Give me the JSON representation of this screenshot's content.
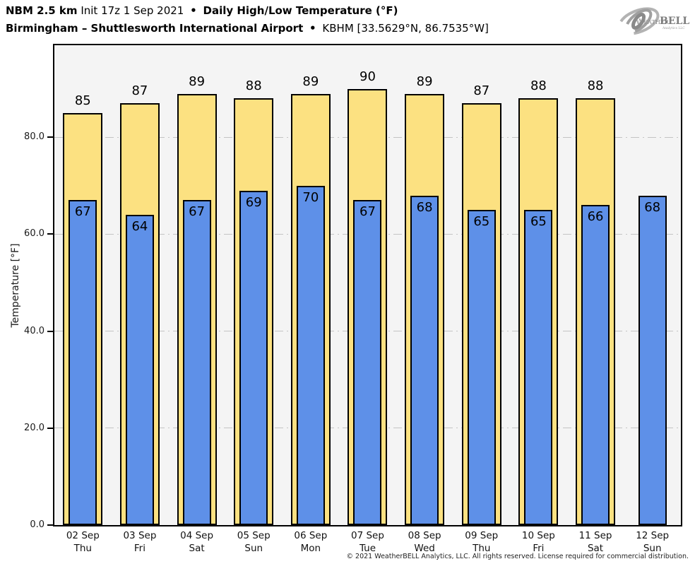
{
  "header": {
    "model": "NBM 2.5 km",
    "init": "Init 17z 1 Sep 2021",
    "bullet": "•",
    "product": "Daily High/Low Temperature (°F)",
    "location": "Birmingham – Shuttlesworth International Airport",
    "station": "KBHM [33.5629°N, 86.7535°W]"
  },
  "logo": {
    "weather": "Weather",
    "bell": "BELL",
    "sub": "Analytics LLC"
  },
  "footer": {
    "copyright": "© 2021 WeatherBELL Analytics, LLC. All rights reserved. License required for commercial distribution."
  },
  "chart_data": {
    "type": "bar",
    "title": "Daily High/Low Temperature (°F)",
    "xlabel": "",
    "ylabel": "Temperature [°F]",
    "ylim": [
      0,
      99
    ],
    "yticks": [
      0,
      20,
      40,
      60,
      80
    ],
    "ytick_labels": [
      "0.0",
      "20.0",
      "40.0",
      "60.0",
      "80.0"
    ],
    "grid": {
      "show": true,
      "style": "dash-dot",
      "color": "#c4c4c4",
      "orientation": "horizontal"
    },
    "legend": "none",
    "categories": [
      {
        "date": "02 Sep",
        "day": "Thu"
      },
      {
        "date": "03 Sep",
        "day": "Fri"
      },
      {
        "date": "04 Sep",
        "day": "Sat"
      },
      {
        "date": "05 Sep",
        "day": "Sun"
      },
      {
        "date": "06 Sep",
        "day": "Mon"
      },
      {
        "date": "07 Sep",
        "day": "Tue"
      },
      {
        "date": "08 Sep",
        "day": "Wed"
      },
      {
        "date": "09 Sep",
        "day": "Thu"
      },
      {
        "date": "10 Sep",
        "day": "Fri"
      },
      {
        "date": "11 Sep",
        "day": "Sat"
      },
      {
        "date": "12 Sep",
        "day": "Sun"
      }
    ],
    "series": [
      {
        "name": "High",
        "color": "#FCE181",
        "outline": "#000000",
        "values": [
          85,
          87,
          89,
          88,
          89,
          90,
          89,
          87,
          88,
          88,
          null
        ]
      },
      {
        "name": "Low",
        "color": "#5E90E8",
        "outline": "#000000",
        "values": [
          67,
          64,
          67,
          69,
          70,
          67,
          68,
          65,
          65,
          66,
          68
        ]
      }
    ]
  },
  "colors": {
    "page_bg": "#ffffff",
    "plot_bg": "#f4f4f4",
    "axis": "#000000",
    "grid": "#c4c4c4",
    "bar_high": "#FCE181",
    "bar_low": "#5E90E8",
    "text": "#000000",
    "logo_gray": "#9a9a9a"
  }
}
